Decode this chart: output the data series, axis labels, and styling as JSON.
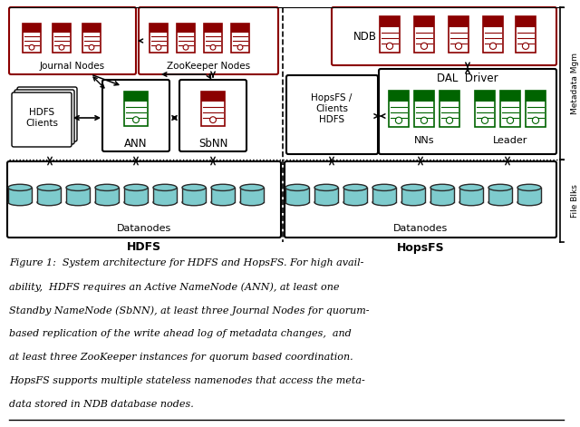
{
  "bg_color": "#ffffff",
  "fig_width": 6.4,
  "fig_height": 4.71,
  "caption_lines": [
    "Figure 1:  System architecture for HDFS and HopsFS. For high avail-",
    "ability,  HDFS requires an Active NameNode (ANN), at least one",
    "Standby NameNode (SbNN), at least three Journal Nodes for quorum-",
    "based replication of the write ahead log of metadata changes,  and",
    "at least three ZooKeeper instances for quorum based coordination.",
    "HopsFS supports multiple stateless namenodes that access the meta-",
    "data stored in NDB database nodes."
  ],
  "server_color_red": "#8B0000",
  "server_color_green": "#006400",
  "cylinder_color": "#7ecbcd",
  "cylinder_edge": "#2a2a2a",
  "text_color": "#000000"
}
